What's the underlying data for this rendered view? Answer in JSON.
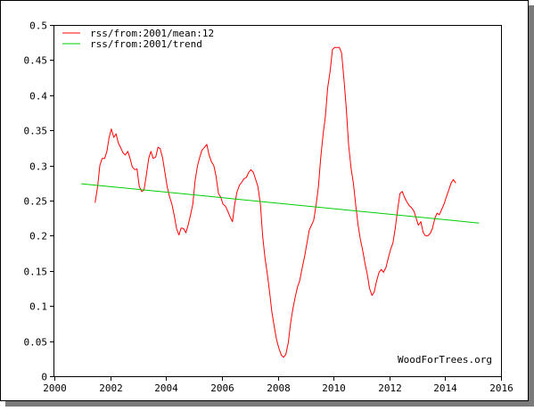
{
  "chart_data": {
    "type": "line",
    "title": "",
    "xlabel": "",
    "ylabel": "",
    "xlim": [
      2000,
      2016
    ],
    "ylim": [
      0,
      0.5
    ],
    "x_ticks": [
      "2000",
      "2002",
      "2004",
      "2006",
      "2008",
      "2010",
      "2012",
      "2014",
      "2016"
    ],
    "y_ticks": [
      "0",
      "0.05",
      "0.1",
      "0.15",
      "0.2",
      "0.25",
      "0.3",
      "0.35",
      "0.4",
      "0.45",
      "0.5"
    ],
    "legend_position": "top-left",
    "watermark": "WoodForTrees.org",
    "series": [
      {
        "name": "rss/from:2001/mean:12",
        "color": "#ff0000",
        "points": [
          [
            2001.46,
            0.247
          ],
          [
            2001.55,
            0.27
          ],
          [
            2001.63,
            0.3
          ],
          [
            2001.71,
            0.31
          ],
          [
            2001.8,
            0.31
          ],
          [
            2001.88,
            0.32
          ],
          [
            2001.96,
            0.34
          ],
          [
            2002.04,
            0.352
          ],
          [
            2002.13,
            0.34
          ],
          [
            2002.21,
            0.345
          ],
          [
            2002.29,
            0.332
          ],
          [
            2002.38,
            0.325
          ],
          [
            2002.46,
            0.318
          ],
          [
            2002.54,
            0.315
          ],
          [
            2002.63,
            0.32
          ],
          [
            2002.71,
            0.31
          ],
          [
            2002.79,
            0.298
          ],
          [
            2002.88,
            0.294
          ],
          [
            2002.96,
            0.295
          ],
          [
            2003.04,
            0.27
          ],
          [
            2003.13,
            0.263
          ],
          [
            2003.21,
            0.265
          ],
          [
            2003.29,
            0.285
          ],
          [
            2003.38,
            0.31
          ],
          [
            2003.46,
            0.32
          ],
          [
            2003.54,
            0.31
          ],
          [
            2003.63,
            0.312
          ],
          [
            2003.71,
            0.326
          ],
          [
            2003.79,
            0.324
          ],
          [
            2003.88,
            0.31
          ],
          [
            2003.96,
            0.29
          ],
          [
            2004.04,
            0.27
          ],
          [
            2004.13,
            0.255
          ],
          [
            2004.21,
            0.245
          ],
          [
            2004.29,
            0.23
          ],
          [
            2004.38,
            0.21
          ],
          [
            2004.46,
            0.201
          ],
          [
            2004.54,
            0.211
          ],
          [
            2004.63,
            0.21
          ],
          [
            2004.71,
            0.204
          ],
          [
            2004.79,
            0.215
          ],
          [
            2004.88,
            0.23
          ],
          [
            2004.96,
            0.245
          ],
          [
            2005.04,
            0.278
          ],
          [
            2005.13,
            0.3
          ],
          [
            2005.21,
            0.312
          ],
          [
            2005.29,
            0.322
          ],
          [
            2005.38,
            0.326
          ],
          [
            2005.46,
            0.33
          ],
          [
            2005.54,
            0.315
          ],
          [
            2005.63,
            0.305
          ],
          [
            2005.71,
            0.3
          ],
          [
            2005.79,
            0.285
          ],
          [
            2005.88,
            0.26
          ],
          [
            2005.96,
            0.255
          ],
          [
            2006.04,
            0.245
          ],
          [
            2006.13,
            0.242
          ],
          [
            2006.21,
            0.235
          ],
          [
            2006.29,
            0.227
          ],
          [
            2006.38,
            0.22
          ],
          [
            2006.46,
            0.245
          ],
          [
            2006.54,
            0.262
          ],
          [
            2006.63,
            0.272
          ],
          [
            2006.71,
            0.276
          ],
          [
            2006.79,
            0.281
          ],
          [
            2006.88,
            0.283
          ],
          [
            2006.96,
            0.29
          ],
          [
            2007.04,
            0.294
          ],
          [
            2007.13,
            0.29
          ],
          [
            2007.21,
            0.28
          ],
          [
            2007.29,
            0.27
          ],
          [
            2007.38,
            0.245
          ],
          [
            2007.46,
            0.2
          ],
          [
            2007.54,
            0.17
          ],
          [
            2007.63,
            0.145
          ],
          [
            2007.71,
            0.12
          ],
          [
            2007.79,
            0.092
          ],
          [
            2007.88,
            0.07
          ],
          [
            2007.96,
            0.052
          ],
          [
            2008.04,
            0.04
          ],
          [
            2008.13,
            0.03
          ],
          [
            2008.21,
            0.027
          ],
          [
            2008.29,
            0.031
          ],
          [
            2008.38,
            0.048
          ],
          [
            2008.46,
            0.075
          ],
          [
            2008.54,
            0.095
          ],
          [
            2008.63,
            0.113
          ],
          [
            2008.71,
            0.127
          ],
          [
            2008.79,
            0.136
          ],
          [
            2008.88,
            0.155
          ],
          [
            2008.96,
            0.17
          ],
          [
            2009.04,
            0.188
          ],
          [
            2009.13,
            0.208
          ],
          [
            2009.21,
            0.215
          ],
          [
            2009.29,
            0.222
          ],
          [
            2009.38,
            0.245
          ],
          [
            2009.46,
            0.27
          ],
          [
            2009.54,
            0.31
          ],
          [
            2009.63,
            0.345
          ],
          [
            2009.71,
            0.37
          ],
          [
            2009.79,
            0.41
          ],
          [
            2009.88,
            0.435
          ],
          [
            2009.96,
            0.465
          ],
          [
            2010.04,
            0.468
          ],
          [
            2010.13,
            0.468
          ],
          [
            2010.21,
            0.468
          ],
          [
            2010.29,
            0.46
          ],
          [
            2010.38,
            0.42
          ],
          [
            2010.46,
            0.38
          ],
          [
            2010.54,
            0.33
          ],
          [
            2010.63,
            0.295
          ],
          [
            2010.71,
            0.275
          ],
          [
            2010.79,
            0.245
          ],
          [
            2010.88,
            0.215
          ],
          [
            2010.96,
            0.195
          ],
          [
            2011.04,
            0.18
          ],
          [
            2011.13,
            0.16
          ],
          [
            2011.21,
            0.145
          ],
          [
            2011.29,
            0.125
          ],
          [
            2011.38,
            0.115
          ],
          [
            2011.46,
            0.12
          ],
          [
            2011.54,
            0.135
          ],
          [
            2011.63,
            0.148
          ],
          [
            2011.71,
            0.152
          ],
          [
            2011.79,
            0.148
          ],
          [
            2011.88,
            0.155
          ],
          [
            2011.96,
            0.168
          ],
          [
            2012.04,
            0.18
          ],
          [
            2012.13,
            0.19
          ],
          [
            2012.21,
            0.21
          ],
          [
            2012.29,
            0.235
          ],
          [
            2012.38,
            0.26
          ],
          [
            2012.46,
            0.263
          ],
          [
            2012.54,
            0.255
          ],
          [
            2012.63,
            0.248
          ],
          [
            2012.71,
            0.243
          ],
          [
            2012.79,
            0.24
          ],
          [
            2012.88,
            0.235
          ],
          [
            2012.96,
            0.225
          ],
          [
            2013.04,
            0.215
          ],
          [
            2013.13,
            0.22
          ],
          [
            2013.21,
            0.205
          ],
          [
            2013.29,
            0.2
          ],
          [
            2013.38,
            0.2
          ],
          [
            2013.46,
            0.203
          ],
          [
            2013.54,
            0.21
          ],
          [
            2013.63,
            0.225
          ],
          [
            2013.71,
            0.232
          ],
          [
            2013.79,
            0.23
          ],
          [
            2013.88,
            0.238
          ],
          [
            2013.96,
            0.245
          ],
          [
            2014.04,
            0.255
          ],
          [
            2014.13,
            0.265
          ],
          [
            2014.21,
            0.275
          ],
          [
            2014.29,
            0.28
          ],
          [
            2014.38,
            0.275
          ]
        ]
      },
      {
        "name": "rss/from:2001/trend",
        "color": "#00cc00",
        "points": [
          [
            2000.96,
            0.274
          ],
          [
            2015.21,
            0.218
          ]
        ]
      }
    ]
  }
}
